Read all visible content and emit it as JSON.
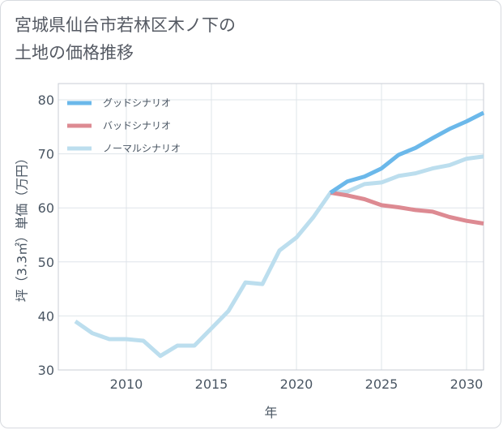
{
  "page": {
    "title_line1": "宮城県仙台市若林区木ノ下の",
    "title_line2": "土地の価格推移"
  },
  "chart_data": {
    "type": "line",
    "title": "宮城県仙台市若林区木ノ下の土地の価格推移",
    "xlabel": "年",
    "ylabel": "坪（3.3㎡）単価（万円）",
    "xlim": [
      2006,
      2031
    ],
    "ylim": [
      30,
      83
    ],
    "x_ticks": [
      2010,
      2015,
      2020,
      2025,
      2030
    ],
    "y_ticks": [
      30,
      40,
      50,
      60,
      70,
      80
    ],
    "grid": true,
    "legend_position": "top-left",
    "series": [
      {
        "name": "グッドシナリオ",
        "color": "#6bb8ea",
        "x": [
          2022,
          2023,
          2024,
          2025,
          2026,
          2027,
          2028,
          2029,
          2030,
          2031
        ],
        "y": [
          62.8,
          64.9,
          65.8,
          67.3,
          69.8,
          71.1,
          72.9,
          74.6,
          76.0,
          77.6
        ]
      },
      {
        "name": "バッドシナリオ",
        "color": "#dd8a92",
        "x": [
          2022,
          2023,
          2024,
          2025,
          2026,
          2027,
          2028,
          2029,
          2030,
          2031
        ],
        "y": [
          62.8,
          62.3,
          61.6,
          60.5,
          60.1,
          59.6,
          59.3,
          58.3,
          57.6,
          57.1
        ]
      },
      {
        "name": "ノーマルシナリオ",
        "color": "#bcdeee",
        "x": [
          2007,
          2008,
          2009,
          2010,
          2011,
          2012,
          2013,
          2014,
          2015,
          2016,
          2017,
          2018,
          2019,
          2020,
          2021,
          2022,
          2023,
          2024,
          2025,
          2026,
          2027,
          2028,
          2029,
          2030,
          2031
        ],
        "y": [
          39.0,
          36.8,
          35.7,
          35.7,
          35.4,
          32.6,
          34.5,
          34.5,
          37.7,
          40.9,
          46.2,
          45.9,
          52.1,
          54.5,
          58.3,
          62.8,
          63.0,
          64.4,
          64.7,
          65.9,
          66.4,
          67.3,
          67.9,
          69.1,
          69.5
        ]
      }
    ]
  }
}
